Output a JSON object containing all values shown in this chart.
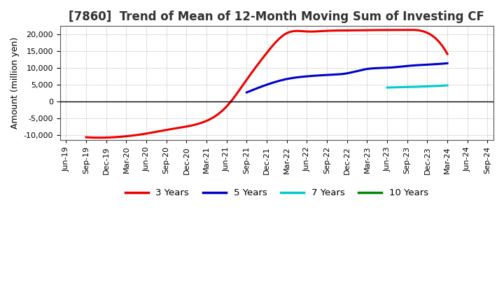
{
  "title": "[7860]  Trend of Mean of 12-Month Moving Sum of Investing CF",
  "ylabel": "Amount (million yen)",
  "background_color": "#ffffff",
  "plot_bg_color": "#ffffff",
  "grid_color": "#aaaaaa",
  "ylim": [
    -11500,
    22500
  ],
  "yticks": [
    -10000,
    -5000,
    0,
    5000,
    10000,
    15000,
    20000
  ],
  "series": {
    "3yr": {
      "color": "#ee0000",
      "label": "3 Years",
      "points": [
        [
          "Sep-19",
          -10700
        ],
        [
          "Dec-19",
          -10800
        ],
        [
          "Mar-20",
          -10400
        ],
        [
          "Jun-20",
          -9600
        ],
        [
          "Sep-20",
          -8500
        ],
        [
          "Dec-20",
          -7500
        ],
        [
          "Mar-21",
          -5800
        ],
        [
          "Jun-21",
          -1500
        ],
        [
          "Sep-21",
          6500
        ],
        [
          "Dec-21",
          14500
        ],
        [
          "Mar-22",
          20400
        ],
        [
          "Jun-22",
          20900
        ],
        [
          "Sep-22",
          21100
        ],
        [
          "Dec-22",
          21200
        ],
        [
          "Mar-23",
          21300
        ],
        [
          "Jun-23",
          21350
        ],
        [
          "Sep-23",
          21400
        ],
        [
          "Dec-23",
          20500
        ],
        [
          "Mar-24",
          14200
        ]
      ]
    },
    "5yr": {
      "color": "#0000cc",
      "label": "5 Years",
      "points": [
        [
          "Sep-21",
          2700
        ],
        [
          "Dec-21",
          5000
        ],
        [
          "Mar-22",
          6700
        ],
        [
          "Jun-22",
          7500
        ],
        [
          "Sep-22",
          7900
        ],
        [
          "Dec-22",
          8400
        ],
        [
          "Mar-23",
          9700
        ],
        [
          "Jun-23",
          10050
        ],
        [
          "Sep-23",
          10600
        ],
        [
          "Dec-23",
          11000
        ],
        [
          "Mar-24",
          11400
        ]
      ]
    },
    "7yr": {
      "color": "#00cccc",
      "label": "7 Years",
      "points": [
        [
          "Jun-23",
          4150
        ],
        [
          "Sep-23",
          4300
        ],
        [
          "Dec-23",
          4500
        ],
        [
          "Mar-24",
          4800
        ]
      ]
    },
    "10yr": {
      "color": "#008800",
      "label": "10 Years",
      "points": []
    }
  },
  "x_labels": [
    "Jun-19",
    "Sep-19",
    "Dec-19",
    "Mar-20",
    "Jun-20",
    "Sep-20",
    "Dec-20",
    "Mar-21",
    "Jun-21",
    "Sep-21",
    "Dec-21",
    "Mar-22",
    "Jun-22",
    "Sep-22",
    "Dec-22",
    "Mar-23",
    "Jun-23",
    "Sep-23",
    "Dec-23",
    "Mar-24",
    "Jun-24",
    "Sep-24"
  ],
  "linewidth": 2.2,
  "title_fontsize": 12,
  "tick_fontsize": 8,
  "ylabel_fontsize": 9
}
